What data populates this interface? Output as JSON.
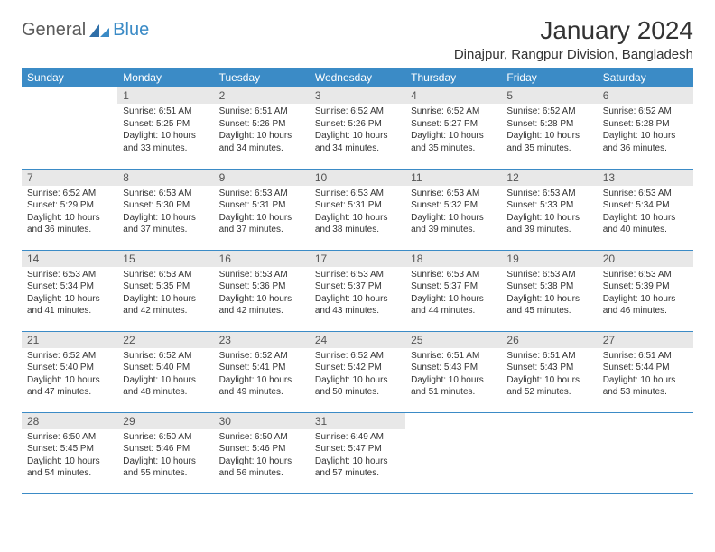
{
  "logo": {
    "part1": "General",
    "part2": "Blue"
  },
  "title": "January 2024",
  "location": "Dinajpur, Rangpur Division, Bangladesh",
  "colors": {
    "header_bg": "#3b8bc6",
    "header_text": "#ffffff",
    "daynum_bg": "#e8e8e8",
    "daynum_text": "#555555",
    "cell_border": "#3b8bc6",
    "body_text": "#333333",
    "logo_gray": "#5a5a5a",
    "logo_blue": "#3b8bc6"
  },
  "weekdays": [
    "Sunday",
    "Monday",
    "Tuesday",
    "Wednesday",
    "Thursday",
    "Friday",
    "Saturday"
  ],
  "start_offset": 1,
  "days": [
    {
      "n": "1",
      "sunrise": "Sunrise: 6:51 AM",
      "sunset": "Sunset: 5:25 PM",
      "day1": "Daylight: 10 hours",
      "day2": "and 33 minutes."
    },
    {
      "n": "2",
      "sunrise": "Sunrise: 6:51 AM",
      "sunset": "Sunset: 5:26 PM",
      "day1": "Daylight: 10 hours",
      "day2": "and 34 minutes."
    },
    {
      "n": "3",
      "sunrise": "Sunrise: 6:52 AM",
      "sunset": "Sunset: 5:26 PM",
      "day1": "Daylight: 10 hours",
      "day2": "and 34 minutes."
    },
    {
      "n": "4",
      "sunrise": "Sunrise: 6:52 AM",
      "sunset": "Sunset: 5:27 PM",
      "day1": "Daylight: 10 hours",
      "day2": "and 35 minutes."
    },
    {
      "n": "5",
      "sunrise": "Sunrise: 6:52 AM",
      "sunset": "Sunset: 5:28 PM",
      "day1": "Daylight: 10 hours",
      "day2": "and 35 minutes."
    },
    {
      "n": "6",
      "sunrise": "Sunrise: 6:52 AM",
      "sunset": "Sunset: 5:28 PM",
      "day1": "Daylight: 10 hours",
      "day2": "and 36 minutes."
    },
    {
      "n": "7",
      "sunrise": "Sunrise: 6:52 AM",
      "sunset": "Sunset: 5:29 PM",
      "day1": "Daylight: 10 hours",
      "day2": "and 36 minutes."
    },
    {
      "n": "8",
      "sunrise": "Sunrise: 6:53 AM",
      "sunset": "Sunset: 5:30 PM",
      "day1": "Daylight: 10 hours",
      "day2": "and 37 minutes."
    },
    {
      "n": "9",
      "sunrise": "Sunrise: 6:53 AM",
      "sunset": "Sunset: 5:31 PM",
      "day1": "Daylight: 10 hours",
      "day2": "and 37 minutes."
    },
    {
      "n": "10",
      "sunrise": "Sunrise: 6:53 AM",
      "sunset": "Sunset: 5:31 PM",
      "day1": "Daylight: 10 hours",
      "day2": "and 38 minutes."
    },
    {
      "n": "11",
      "sunrise": "Sunrise: 6:53 AM",
      "sunset": "Sunset: 5:32 PM",
      "day1": "Daylight: 10 hours",
      "day2": "and 39 minutes."
    },
    {
      "n": "12",
      "sunrise": "Sunrise: 6:53 AM",
      "sunset": "Sunset: 5:33 PM",
      "day1": "Daylight: 10 hours",
      "day2": "and 39 minutes."
    },
    {
      "n": "13",
      "sunrise": "Sunrise: 6:53 AM",
      "sunset": "Sunset: 5:34 PM",
      "day1": "Daylight: 10 hours",
      "day2": "and 40 minutes."
    },
    {
      "n": "14",
      "sunrise": "Sunrise: 6:53 AM",
      "sunset": "Sunset: 5:34 PM",
      "day1": "Daylight: 10 hours",
      "day2": "and 41 minutes."
    },
    {
      "n": "15",
      "sunrise": "Sunrise: 6:53 AM",
      "sunset": "Sunset: 5:35 PM",
      "day1": "Daylight: 10 hours",
      "day2": "and 42 minutes."
    },
    {
      "n": "16",
      "sunrise": "Sunrise: 6:53 AM",
      "sunset": "Sunset: 5:36 PM",
      "day1": "Daylight: 10 hours",
      "day2": "and 42 minutes."
    },
    {
      "n": "17",
      "sunrise": "Sunrise: 6:53 AM",
      "sunset": "Sunset: 5:37 PM",
      "day1": "Daylight: 10 hours",
      "day2": "and 43 minutes."
    },
    {
      "n": "18",
      "sunrise": "Sunrise: 6:53 AM",
      "sunset": "Sunset: 5:37 PM",
      "day1": "Daylight: 10 hours",
      "day2": "and 44 minutes."
    },
    {
      "n": "19",
      "sunrise": "Sunrise: 6:53 AM",
      "sunset": "Sunset: 5:38 PM",
      "day1": "Daylight: 10 hours",
      "day2": "and 45 minutes."
    },
    {
      "n": "20",
      "sunrise": "Sunrise: 6:53 AM",
      "sunset": "Sunset: 5:39 PM",
      "day1": "Daylight: 10 hours",
      "day2": "and 46 minutes."
    },
    {
      "n": "21",
      "sunrise": "Sunrise: 6:52 AM",
      "sunset": "Sunset: 5:40 PM",
      "day1": "Daylight: 10 hours",
      "day2": "and 47 minutes."
    },
    {
      "n": "22",
      "sunrise": "Sunrise: 6:52 AM",
      "sunset": "Sunset: 5:40 PM",
      "day1": "Daylight: 10 hours",
      "day2": "and 48 minutes."
    },
    {
      "n": "23",
      "sunrise": "Sunrise: 6:52 AM",
      "sunset": "Sunset: 5:41 PM",
      "day1": "Daylight: 10 hours",
      "day2": "and 49 minutes."
    },
    {
      "n": "24",
      "sunrise": "Sunrise: 6:52 AM",
      "sunset": "Sunset: 5:42 PM",
      "day1": "Daylight: 10 hours",
      "day2": "and 50 minutes."
    },
    {
      "n": "25",
      "sunrise": "Sunrise: 6:51 AM",
      "sunset": "Sunset: 5:43 PM",
      "day1": "Daylight: 10 hours",
      "day2": "and 51 minutes."
    },
    {
      "n": "26",
      "sunrise": "Sunrise: 6:51 AM",
      "sunset": "Sunset: 5:43 PM",
      "day1": "Daylight: 10 hours",
      "day2": "and 52 minutes."
    },
    {
      "n": "27",
      "sunrise": "Sunrise: 6:51 AM",
      "sunset": "Sunset: 5:44 PM",
      "day1": "Daylight: 10 hours",
      "day2": "and 53 minutes."
    },
    {
      "n": "28",
      "sunrise": "Sunrise: 6:50 AM",
      "sunset": "Sunset: 5:45 PM",
      "day1": "Daylight: 10 hours",
      "day2": "and 54 minutes."
    },
    {
      "n": "29",
      "sunrise": "Sunrise: 6:50 AM",
      "sunset": "Sunset: 5:46 PM",
      "day1": "Daylight: 10 hours",
      "day2": "and 55 minutes."
    },
    {
      "n": "30",
      "sunrise": "Sunrise: 6:50 AM",
      "sunset": "Sunset: 5:46 PM",
      "day1": "Daylight: 10 hours",
      "day2": "and 56 minutes."
    },
    {
      "n": "31",
      "sunrise": "Sunrise: 6:49 AM",
      "sunset": "Sunset: 5:47 PM",
      "day1": "Daylight: 10 hours",
      "day2": "and 57 minutes."
    }
  ]
}
